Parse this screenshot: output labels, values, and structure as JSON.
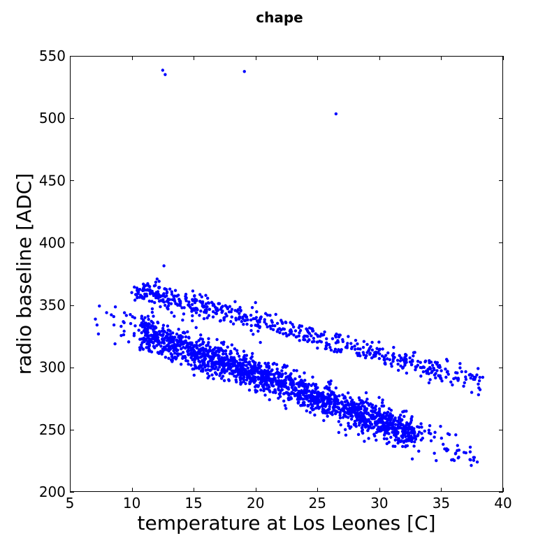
{
  "chart_data": {
    "type": "scatter",
    "title": "chape",
    "xlabel": "temperature at Los Leones [C]",
    "ylabel": "radio baseline [ADC]",
    "xlim": [
      5,
      40
    ],
    "ylim": [
      200,
      550
    ],
    "xticks": [
      5,
      10,
      15,
      20,
      25,
      30,
      35,
      40
    ],
    "yticks": [
      200,
      250,
      300,
      350,
      400,
      450,
      500,
      550
    ],
    "grid": false,
    "color": "#0000ff",
    "outliers": [
      {
        "x": 12.5,
        "y": 538.5
      },
      {
        "x": 12.7,
        "y": 535.0
      },
      {
        "x": 19.1,
        "y": 537.5
      },
      {
        "x": 26.5,
        "y": 503.5
      },
      {
        "x": 12.6,
        "y": 381.5
      },
      {
        "x": 20.0,
        "y": 352.0
      },
      {
        "x": 10.0,
        "y": 360.0
      }
    ],
    "upper_band": {
      "x_start": 10.5,
      "x_end": 38.3,
      "y_start": 362,
      "y_end": 289,
      "spread": 4.5,
      "count": 600
    },
    "lower_band": {
      "x_start": 7.2,
      "x_end": 37.8,
      "y_start": 342,
      "y_end": 228,
      "spread": 6.5,
      "count": 1900
    }
  }
}
